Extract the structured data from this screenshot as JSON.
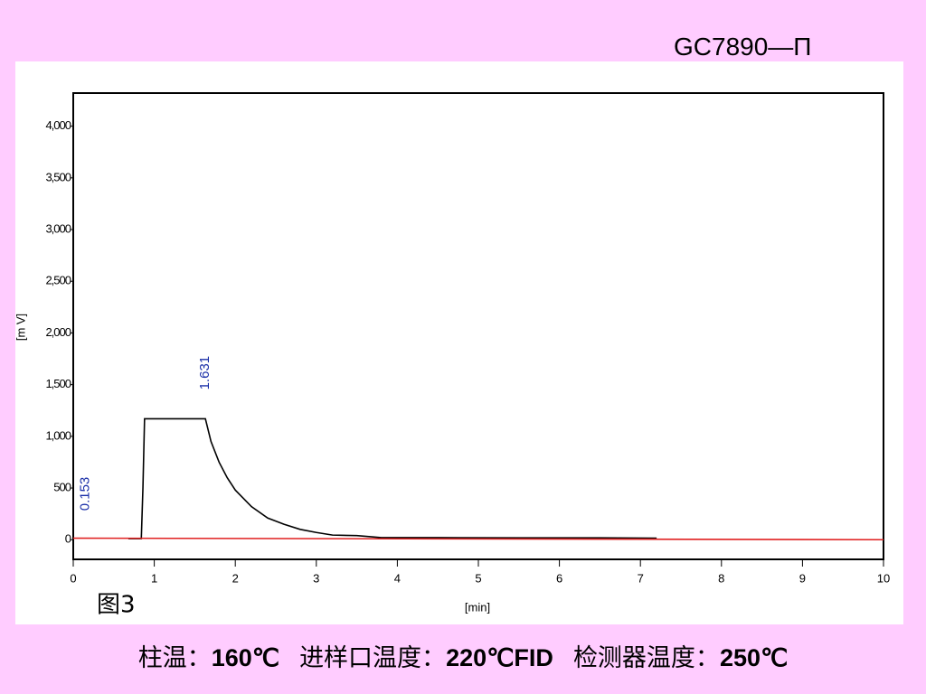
{
  "header": {
    "title": "GC7890—П"
  },
  "chart_data": {
    "type": "line",
    "y_label": "[m V]",
    "x_label": "[min]",
    "caption": "图3",
    "xlim": [
      0,
      10
    ],
    "ylim": [
      -190,
      4320
    ],
    "xticks": [
      0,
      1,
      2,
      3,
      4,
      5,
      6,
      7,
      8,
      9,
      10
    ],
    "yticks": [
      0,
      500,
      {
        "value": 1000,
        "label": "1,000"
      },
      {
        "value": 1500,
        "label": "1,500"
      },
      {
        "value": 2000,
        "label": "2,000"
      },
      {
        "value": 2500,
        "label": "2,500"
      },
      {
        "value": 3000,
        "label": "3,000"
      },
      {
        "value": 3500,
        "label": "3,500"
      },
      {
        "value": 4000,
        "label": "4,000"
      }
    ],
    "series": [
      {
        "color": "#000000",
        "x": [
          0.68,
          0.84,
          0.86,
          0.88,
          1.0,
          1.3,
          1.631,
          1.7,
          1.8,
          1.9,
          2.0,
          2.2,
          2.4,
          2.6,
          2.8,
          3.0,
          3.2,
          3.5,
          3.8,
          4.5,
          5.5,
          6.5,
          7.2
        ],
        "values": [
          10,
          10,
          500,
          1170,
          1170,
          1170,
          1170,
          950,
          750,
          600,
          480,
          320,
          210,
          150,
          100,
          70,
          45,
          40,
          20,
          20,
          18,
          18,
          15
        ]
      },
      {
        "color": "#e02020",
        "x": [
          0,
          10
        ],
        "values": [
          15,
          0
        ]
      }
    ],
    "annotations": [
      {
        "text": "0.153",
        "x": 0.153,
        "color": "#1a2fa8"
      },
      {
        "text": "1.631",
        "x": 1.631,
        "color": "#1a2fa8"
      }
    ]
  },
  "footer": {
    "segments": [
      {
        "text": "柱温：",
        "bold": false
      },
      {
        "text": "160℃",
        "bold": true
      },
      {
        "text": "进样口温度：",
        "bold": false
      },
      {
        "text": "220℃FID",
        "bold": true
      },
      {
        "text": "检测器温度：",
        "bold": false
      },
      {
        "text": "250℃",
        "bold": true
      }
    ]
  }
}
